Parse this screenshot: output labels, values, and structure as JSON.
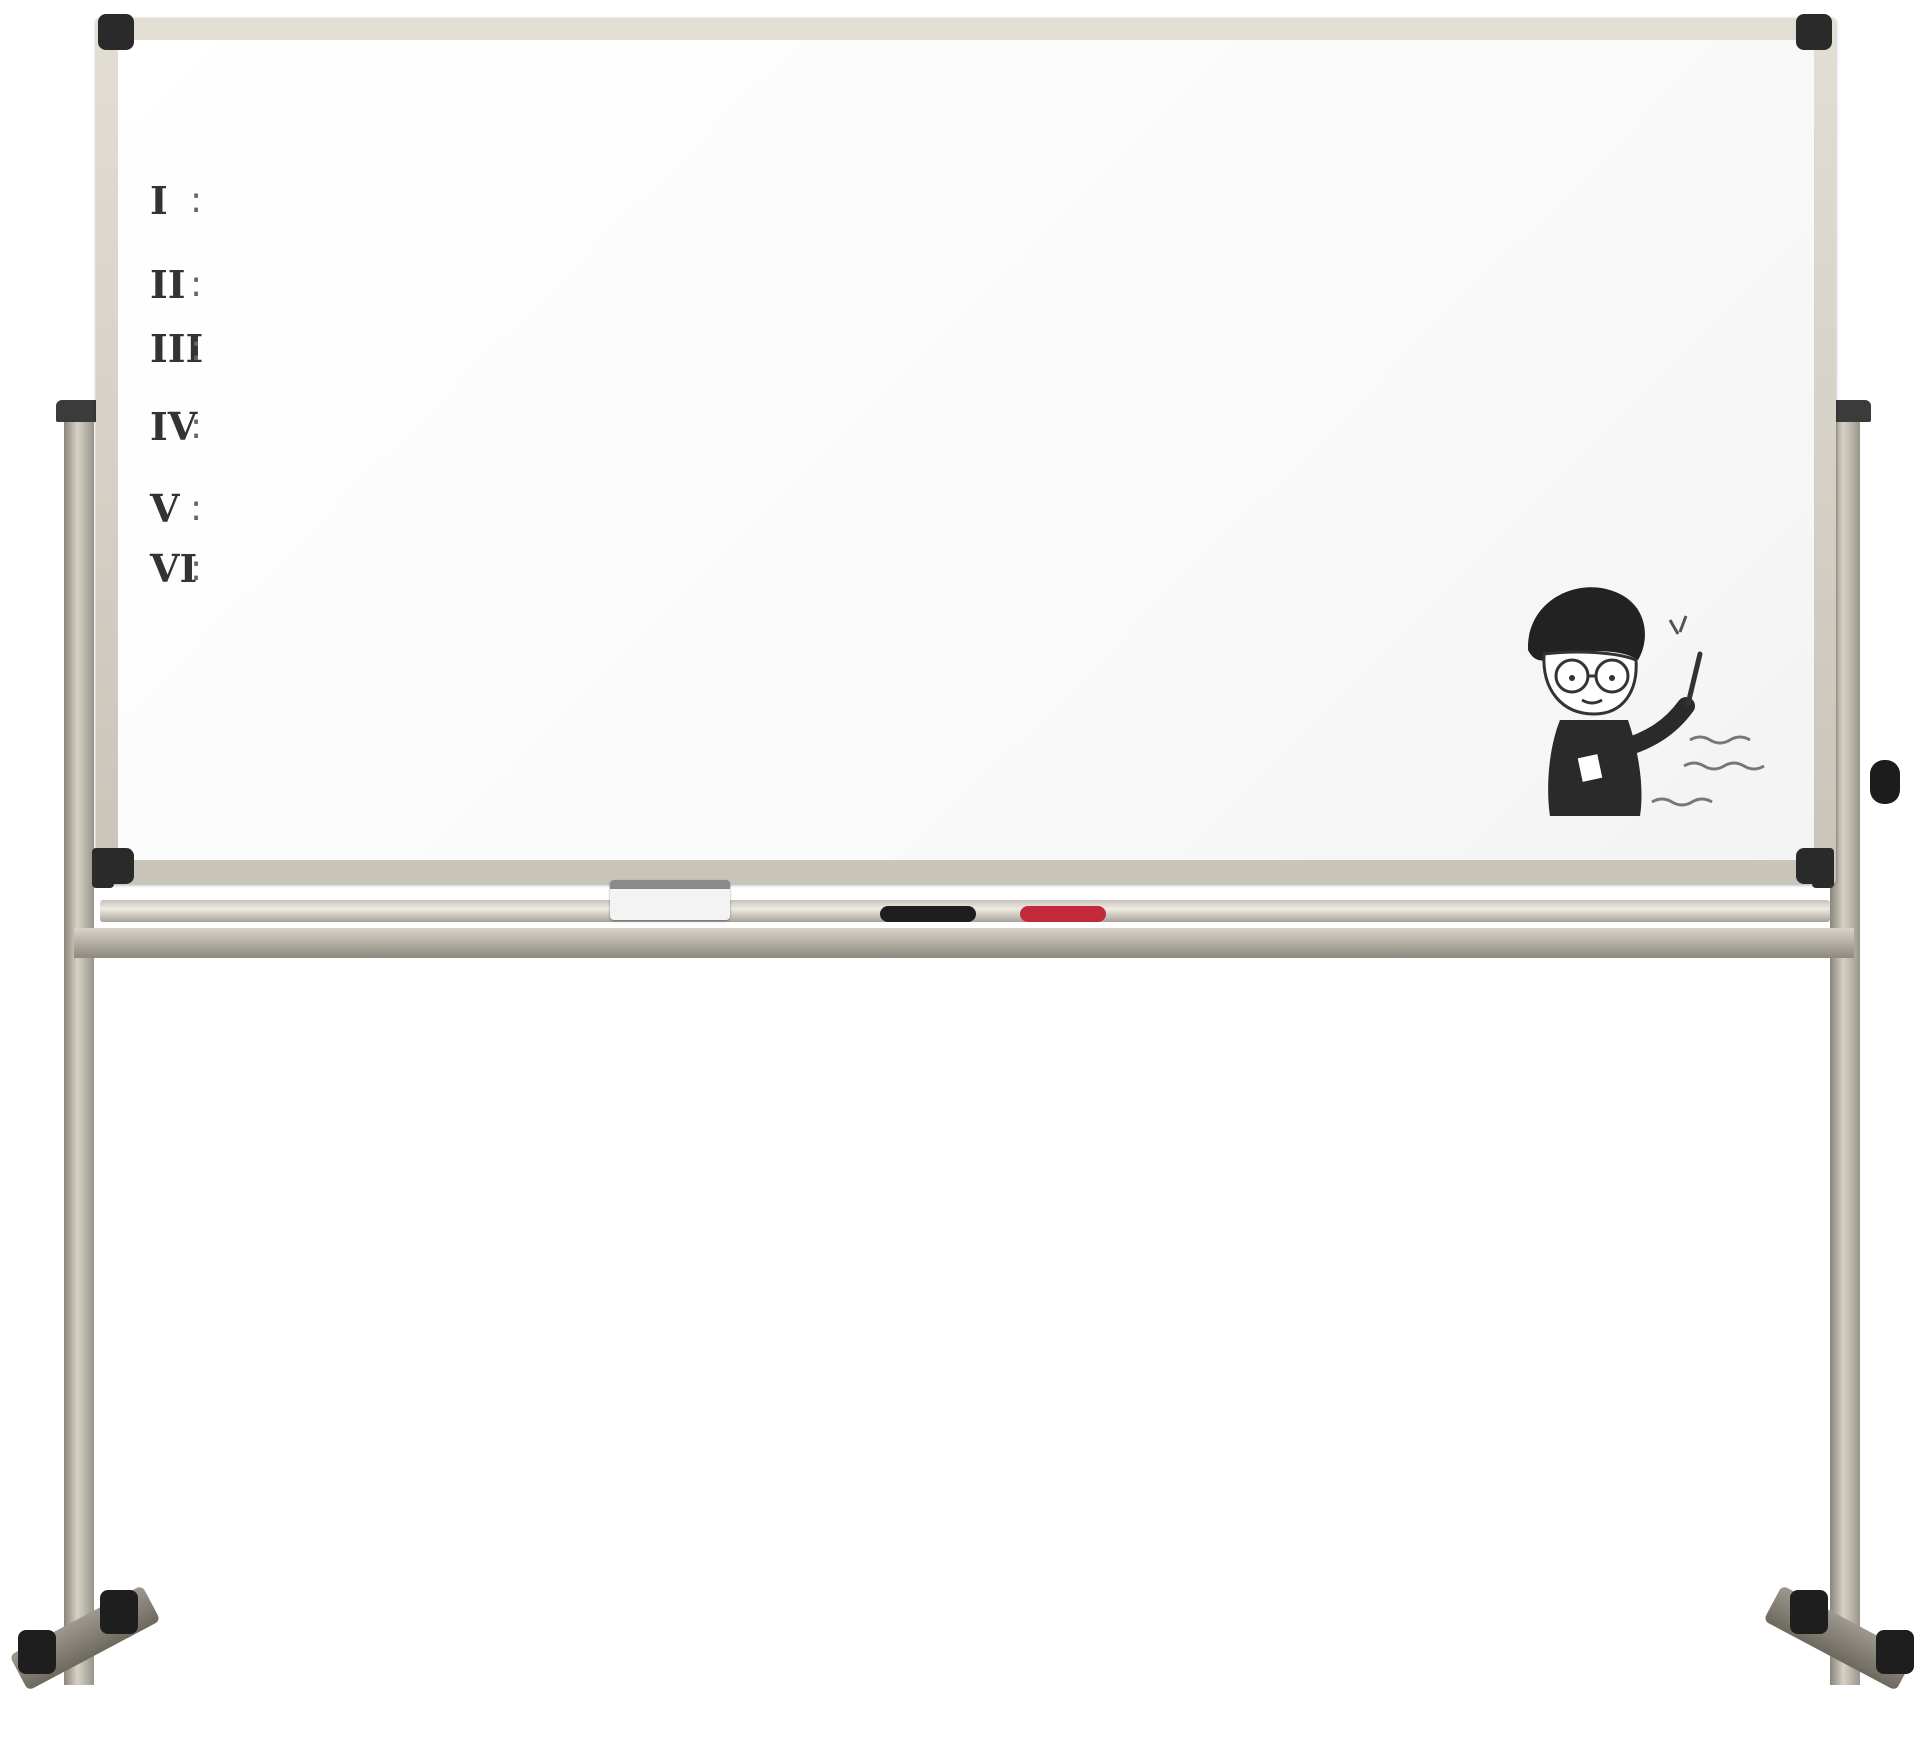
{
  "board": {
    "rows": [
      {
        "num": "I",
        "term": "",
        "desc": ""
      },
      {
        "num": "II",
        "term": "",
        "desc": ""
      },
      {
        "num": "III",
        "term": "",
        "desc": ""
      },
      {
        "num": "IV",
        "term": "",
        "desc": ""
      },
      {
        "num": "V",
        "term": "",
        "desc": ""
      },
      {
        "num": "VI",
        "term": "",
        "desc": ""
      }
    ],
    "doodle_caption": ""
  },
  "colors": {
    "term": "#e8231f",
    "frame": "#d6d1c5",
    "marker_black": "#1e1e1e",
    "marker_red": "#c22a3c"
  }
}
